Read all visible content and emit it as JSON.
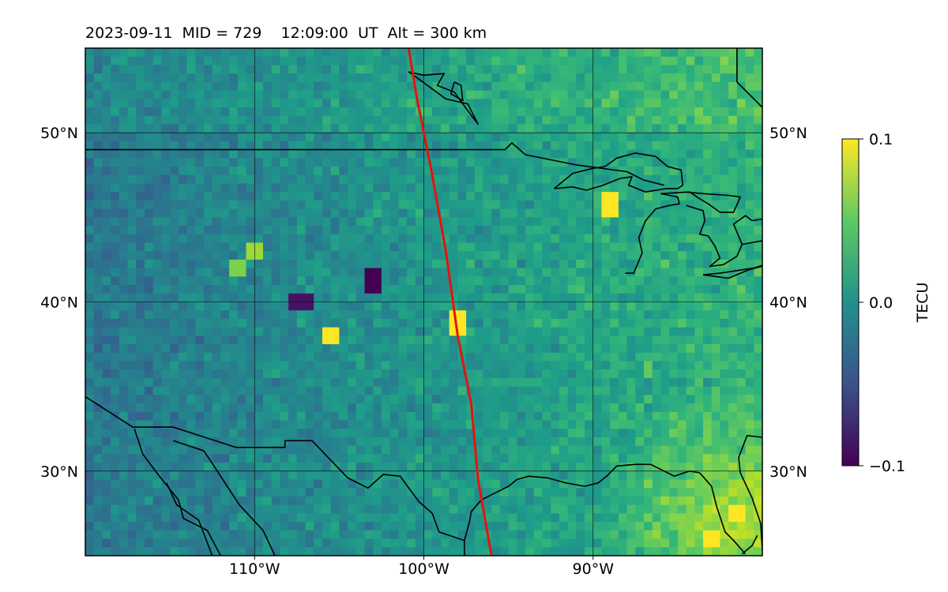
{
  "chart_data": {
    "type": "heatmap",
    "title": "2023-09-11  MID = 729    12:09:00  UT  Alt = 300 km",
    "projection": "map",
    "x": {
      "range": [
        -120,
        -80
      ],
      "ticks": [
        -110,
        -100,
        -90
      ],
      "tick_labels": [
        "110°W",
        "100°W",
        "90°W"
      ]
    },
    "y": {
      "range": [
        25,
        55
      ],
      "ticks": [
        30,
        40,
        50
      ],
      "tick_labels_left": [
        "30°N",
        "40°N",
        "50°N"
      ],
      "tick_labels_right": [
        "30°N",
        "40°N",
        "50°N"
      ]
    },
    "grid": true,
    "colorbar": {
      "label": "TECU",
      "colormap": "viridis",
      "range": [
        -0.1,
        0.1
      ],
      "ticks": [
        0.1,
        0.0,
        -0.1
      ],
      "tick_labels": [
        "0.1",
        "0.0",
        "−0.1"
      ],
      "position": "right"
    },
    "value_pattern": {
      "west_mean": -0.02,
      "east_mean": 0.03,
      "southeast_peak": 0.1
    },
    "hotspots": [
      {
        "lon": -103.0,
        "lat": 41.2,
        "value": -0.1
      },
      {
        "lon": -107.2,
        "lat": 40.0,
        "value": -0.09
      },
      {
        "lon": -105.4,
        "lat": 38.0,
        "value": 0.1
      },
      {
        "lon": -98.0,
        "lat": 38.7,
        "value": 0.1
      },
      {
        "lon": -89.0,
        "lat": 45.7,
        "value": 0.1
      },
      {
        "lon": -83.0,
        "lat": 26.0,
        "value": 0.1
      },
      {
        "lon": -81.5,
        "lat": 27.5,
        "value": 0.1
      },
      {
        "lon": -110.0,
        "lat": 43.0,
        "value": 0.07
      },
      {
        "lon": -111.0,
        "lat": 42.0,
        "value": 0.06
      }
    ],
    "overlay_line": {
      "color": "#e8120c",
      "points": [
        [
          -100.9,
          55.0
        ],
        [
          -100.4,
          52.0
        ],
        [
          -99.6,
          48.0
        ],
        [
          -98.7,
          43.0
        ],
        [
          -98.0,
          38.0
        ],
        [
          -97.2,
          34.0
        ],
        [
          -96.8,
          29.5
        ],
        [
          -96.0,
          25.0
        ]
      ]
    },
    "coastlines": [
      [
        [
          -120,
          49.0
        ],
        [
          -95.2,
          49.0
        ],
        [
          -94.8,
          49.4
        ],
        [
          -94.0,
          48.7
        ],
        [
          -91.0,
          48.1
        ],
        [
          -89.5,
          47.9
        ],
        [
          -88.0,
          47.7
        ],
        [
          -87.0,
          47.2
        ],
        [
          -85.8,
          46.9
        ]
      ],
      [
        [
          -120,
          34.4
        ],
        [
          -117.2,
          32.6
        ],
        [
          -114.8,
          32.6
        ],
        [
          -111.1,
          31.4
        ],
        [
          -108.2,
          31.4
        ],
        [
          -108.2,
          31.8
        ],
        [
          -106.6,
          31.8
        ],
        [
          -104.5,
          29.6
        ],
        [
          -103.3,
          29.0
        ],
        [
          -102.4,
          29.8
        ],
        [
          -101.4,
          29.7
        ],
        [
          -100.3,
          28.2
        ],
        [
          -99.5,
          27.5
        ],
        [
          -99.1,
          26.4
        ],
        [
          -97.6,
          25.9
        ]
      ],
      [
        [
          -97.6,
          25.0
        ],
        [
          -97.6,
          25.9
        ],
        [
          -97.3,
          27.0
        ],
        [
          -97.2,
          27.6
        ],
        [
          -96.6,
          28.3
        ],
        [
          -95.0,
          29.1
        ],
        [
          -94.5,
          29.5
        ],
        [
          -93.8,
          29.7
        ],
        [
          -92.7,
          29.6
        ],
        [
          -91.6,
          29.3
        ],
        [
          -90.5,
          29.1
        ],
        [
          -89.7,
          29.3
        ],
        [
          -89.2,
          29.7
        ],
        [
          -88.6,
          30.3
        ],
        [
          -87.5,
          30.4
        ],
        [
          -86.6,
          30.4
        ],
        [
          -85.2,
          29.7
        ],
        [
          -84.3,
          30.0
        ],
        [
          -83.7,
          29.9
        ],
        [
          -83.0,
          29.1
        ],
        [
          -82.7,
          27.9
        ],
        [
          -82.2,
          26.4
        ],
        [
          -81.7,
          25.9
        ],
        [
          -81.0,
          25.1
        ]
      ],
      [
        [
          -80.0,
          32.0
        ],
        [
          -80.9,
          32.1
        ],
        [
          -81.4,
          30.8
        ],
        [
          -81.3,
          29.9
        ],
        [
          -80.6,
          28.4
        ],
        [
          -80.1,
          26.9
        ],
        [
          -80.0,
          25.3
        ]
      ],
      [
        [
          -117.1,
          32.5
        ],
        [
          -116.6,
          31.0
        ],
        [
          -115.7,
          29.8
        ],
        [
          -114.5,
          28.3
        ],
        [
          -114.2,
          27.2
        ],
        [
          -112.8,
          26.5
        ],
        [
          -112.0,
          25.0
        ]
      ],
      [
        [
          -114.8,
          31.8
        ],
        [
          -113.0,
          31.2
        ],
        [
          -112.2,
          30.0
        ],
        [
          -110.9,
          28.0
        ],
        [
          -109.5,
          26.5
        ],
        [
          -108.8,
          25.0
        ]
      ],
      [
        [
          -115.2,
          29.3
        ],
        [
          -114.6,
          28.0
        ],
        [
          -113.3,
          27.1
        ],
        [
          -112.5,
          25.0
        ]
      ],
      [
        [
          -88.1,
          41.7
        ],
        [
          -87.6,
          41.7
        ],
        [
          -87.1,
          42.9
        ],
        [
          -87.3,
          43.8
        ],
        [
          -86.9,
          44.8
        ],
        [
          -86.3,
          45.5
        ],
        [
          -85.5,
          45.7
        ],
        [
          -84.9,
          45.8
        ],
        [
          -85.0,
          46.2
        ],
        [
          -86.0,
          46.4
        ]
      ],
      [
        [
          -86.0,
          46.4
        ],
        [
          -84.3,
          46.5
        ],
        [
          -83.7,
          46.1
        ],
        [
          -83.2,
          45.8
        ],
        [
          -82.5,
          45.3
        ],
        [
          -81.7,
          45.3
        ],
        [
          -81.3,
          46.2
        ],
        [
          -82.0,
          46.3
        ],
        [
          -83.5,
          46.4
        ],
        [
          -84.6,
          46.5
        ]
      ],
      [
        [
          -84.5,
          45.7
        ],
        [
          -83.5,
          45.4
        ],
        [
          -83.4,
          44.8
        ],
        [
          -83.7,
          44.0
        ],
        [
          -83.2,
          43.9
        ],
        [
          -82.8,
          43.3
        ],
        [
          -82.5,
          42.6
        ],
        [
          -83.1,
          42.1
        ],
        [
          -82.3,
          42.2
        ],
        [
          -81.5,
          42.7
        ],
        [
          -81.2,
          43.4
        ],
        [
          -81.7,
          44.6
        ],
        [
          -81.0,
          45.1
        ],
        [
          -80.6,
          44.8
        ],
        [
          -80.0,
          44.9
        ]
      ],
      [
        [
          -83.5,
          41.6
        ],
        [
          -82.5,
          41.7
        ],
        [
          -80.5,
          42.0
        ],
        [
          -79.0,
          42.5
        ]
      ],
      [
        [
          -83.5,
          41.6
        ],
        [
          -82.0,
          41.4
        ],
        [
          -80.8,
          41.9
        ],
        [
          -79.3,
          42.3
        ]
      ],
      [
        [
          -81.2,
          43.4
        ],
        [
          -80.1,
          43.6
        ],
        [
          -79.0,
          43.4
        ]
      ],
      [
        [
          -92.3,
          46.7
        ],
        [
          -91.2,
          46.8
        ],
        [
          -90.4,
          46.6
        ],
        [
          -89.4,
          46.9
        ],
        [
          -88.4,
          47.3
        ],
        [
          -87.7,
          47.4
        ],
        [
          -87.9,
          46.9
        ],
        [
          -86.9,
          46.5
        ],
        [
          -85.7,
          46.7
        ],
        [
          -85.0,
          46.7
        ],
        [
          -84.7,
          46.9
        ],
        [
          -84.8,
          47.8
        ],
        [
          -85.6,
          48.0
        ],
        [
          -86.3,
          48.6
        ],
        [
          -87.5,
          48.8
        ],
        [
          -88.6,
          48.5
        ],
        [
          -89.3,
          48.0
        ],
        [
          -90.0,
          47.9
        ],
        [
          -91.2,
          47.6
        ],
        [
          -92.3,
          46.7
        ]
      ],
      [
        [
          -100.9,
          53.6
        ],
        [
          -100.0,
          53.4
        ],
        [
          -98.8,
          53.5
        ],
        [
          -99.2,
          52.8
        ],
        [
          -98.2,
          52.4
        ],
        [
          -97.4,
          51.3
        ],
        [
          -96.8,
          50.5
        ],
        [
          -97.4,
          51.7
        ],
        [
          -98.7,
          52.0
        ],
        [
          -100.2,
          53.1
        ],
        [
          -100.9,
          53.6
        ]
      ],
      [
        [
          -98.2,
          53.0
        ],
        [
          -97.8,
          52.8
        ],
        [
          -97.7,
          51.9
        ],
        [
          -98.4,
          52.3
        ],
        [
          -98.2,
          53.0
        ]
      ],
      [
        [
          -81.5,
          55.0
        ],
        [
          -81.5,
          53.0
        ],
        [
          -80.0,
          51.5
        ]
      ],
      [
        [
          -81.2,
          25.1
        ],
        [
          -80.6,
          25.6
        ],
        [
          -80.3,
          26.2
        ]
      ]
    ]
  }
}
